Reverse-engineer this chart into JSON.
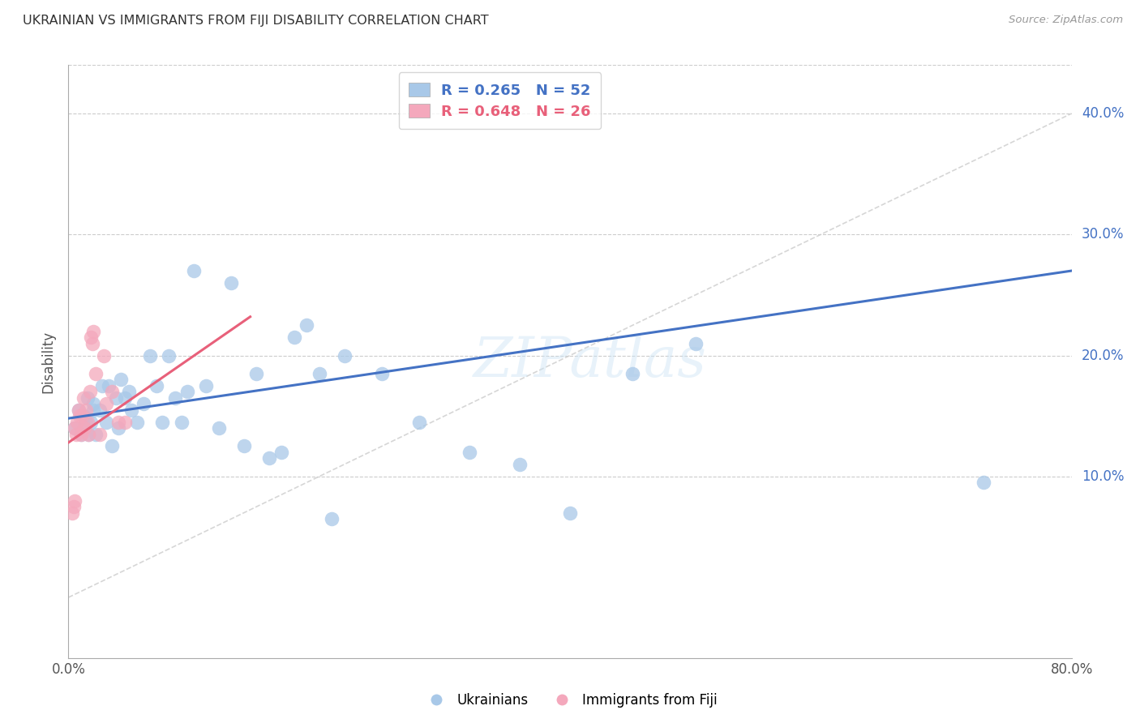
{
  "title": "UKRAINIAN VS IMMIGRANTS FROM FIJI DISABILITY CORRELATION CHART",
  "source": "Source: ZipAtlas.com",
  "ylabel": "Disability",
  "xlim": [
    0,
    0.8
  ],
  "ylim": [
    -0.05,
    0.44
  ],
  "yticks": [
    0.1,
    0.2,
    0.3,
    0.4
  ],
  "ytick_labels": [
    "10.0%",
    "20.0%",
    "30.0%",
    "40.0%"
  ],
  "xticks": [
    0.0,
    0.1,
    0.2,
    0.3,
    0.4,
    0.5,
    0.6,
    0.7,
    0.8
  ],
  "legend_blue_label": "R = 0.265   N = 52",
  "legend_pink_label": "R = 0.648   N = 26",
  "blue_color": "#a8c8e8",
  "pink_color": "#f4a8bc",
  "blue_line_color": "#4472c4",
  "pink_line_color": "#e8607a",
  "watermark": "ZIPatlas",
  "blue_scatter_x": [
    0.005,
    0.008,
    0.01,
    0.012,
    0.014,
    0.015,
    0.016,
    0.018,
    0.02,
    0.02,
    0.022,
    0.025,
    0.027,
    0.03,
    0.032,
    0.035,
    0.038,
    0.04,
    0.042,
    0.045,
    0.048,
    0.05,
    0.055,
    0.06,
    0.065,
    0.07,
    0.075,
    0.08,
    0.085,
    0.09,
    0.095,
    0.1,
    0.11,
    0.12,
    0.13,
    0.14,
    0.15,
    0.16,
    0.17,
    0.18,
    0.19,
    0.2,
    0.21,
    0.22,
    0.25,
    0.28,
    0.32,
    0.36,
    0.4,
    0.45,
    0.5,
    0.73
  ],
  "blue_scatter_y": [
    0.14,
    0.155,
    0.135,
    0.15,
    0.145,
    0.165,
    0.135,
    0.145,
    0.155,
    0.16,
    0.135,
    0.155,
    0.175,
    0.145,
    0.175,
    0.125,
    0.165,
    0.14,
    0.18,
    0.165,
    0.17,
    0.155,
    0.145,
    0.16,
    0.2,
    0.175,
    0.145,
    0.2,
    0.165,
    0.145,
    0.17,
    0.27,
    0.175,
    0.14,
    0.26,
    0.125,
    0.185,
    0.115,
    0.12,
    0.215,
    0.225,
    0.185,
    0.065,
    0.2,
    0.185,
    0.145,
    0.12,
    0.11,
    0.07,
    0.185,
    0.21,
    0.095
  ],
  "pink_scatter_x": [
    0.003,
    0.004,
    0.005,
    0.005,
    0.006,
    0.007,
    0.008,
    0.009,
    0.01,
    0.011,
    0.012,
    0.013,
    0.014,
    0.015,
    0.016,
    0.017,
    0.018,
    0.019,
    0.02,
    0.022,
    0.025,
    0.028,
    0.03,
    0.035,
    0.04,
    0.045
  ],
  "pink_scatter_y": [
    0.07,
    0.075,
    0.14,
    0.08,
    0.135,
    0.145,
    0.155,
    0.15,
    0.135,
    0.15,
    0.165,
    0.14,
    0.155,
    0.145,
    0.135,
    0.17,
    0.215,
    0.21,
    0.22,
    0.185,
    0.135,
    0.2,
    0.16,
    0.17,
    0.145,
    0.145
  ],
  "blue_trend_x": [
    0.0,
    0.8
  ],
  "blue_trend_y": [
    0.148,
    0.27
  ],
  "pink_trend_x": [
    0.0,
    0.145
  ],
  "pink_trend_y": [
    0.128,
    0.232
  ],
  "ref_line_x": [
    0.0,
    0.8
  ],
  "ref_line_y": [
    0.0,
    0.4
  ]
}
